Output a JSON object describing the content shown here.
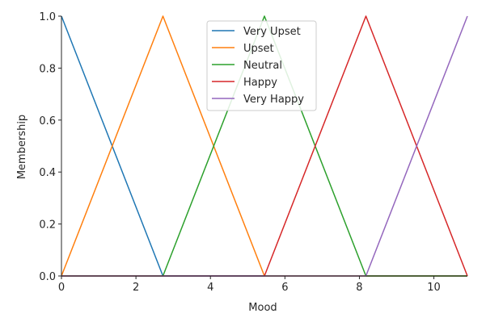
{
  "chart_data": {
    "type": "line",
    "xlabel": "Mood",
    "ylabel": "Membership",
    "xlim": [
      0,
      10.9
    ],
    "ylim": [
      0,
      1.0
    ],
    "xticks": [
      0,
      2,
      4,
      6,
      8,
      10
    ],
    "yticks": [
      0.0,
      0.2,
      0.4,
      0.6,
      0.8,
      1.0
    ],
    "xtick_labels": [
      "0",
      "2",
      "4",
      "6",
      "8",
      "10"
    ],
    "ytick_labels": [
      "0.0",
      "0.2",
      "0.4",
      "0.6",
      "0.8",
      "1.0"
    ],
    "grid": false,
    "legend_position": "top-center",
    "series": [
      {
        "name": "Very Upset",
        "color": "#1f77b4",
        "x": [
          0,
          2.725,
          10.9
        ],
        "y": [
          1,
          0,
          0
        ]
      },
      {
        "name": "Upset",
        "color": "#ff7f0e",
        "x": [
          0,
          2.725,
          5.45,
          10.9
        ],
        "y": [
          0,
          1,
          0,
          0
        ]
      },
      {
        "name": "Neutral",
        "color": "#2ca02c",
        "x": [
          0,
          2.725,
          5.45,
          8.175,
          10.9
        ],
        "y": [
          0,
          0,
          1,
          0,
          0
        ]
      },
      {
        "name": "Happy",
        "color": "#d62728",
        "x": [
          0,
          5.45,
          8.175,
          10.9
        ],
        "y": [
          0,
          0,
          1,
          0
        ]
      },
      {
        "name": "Very Happy",
        "color": "#9467bd",
        "x": [
          0,
          8.175,
          10.9
        ],
        "y": [
          0,
          0,
          1
        ]
      }
    ]
  }
}
